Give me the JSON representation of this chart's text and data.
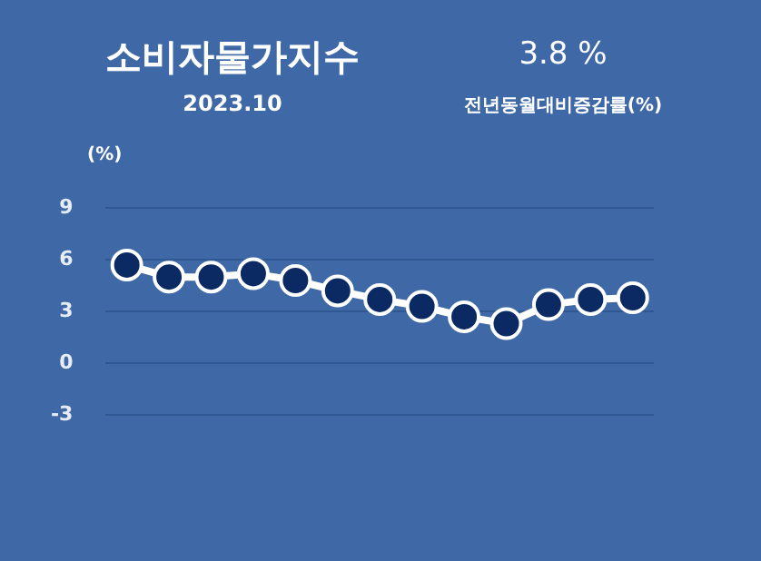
{
  "chart_data": {
    "type": "line",
    "title": "소비자물가지수",
    "subtitle": "2023.10",
    "ylabel": "(%)",
    "annotations": [
      "3.8 %",
      "전년동월대비증감률(%)"
    ],
    "categories": [
      null,
      null,
      null,
      null,
      null,
      null,
      null,
      null,
      null,
      null,
      null,
      null,
      null
    ],
    "series": [
      {
        "color": "#0b2a63",
        "values": [
          5.7,
          5.0,
          5.0,
          5.2,
          4.8,
          4.2,
          3.7,
          3.3,
          2.7,
          2.3,
          3.4,
          3.7,
          3.8
        ]
      }
    ],
    "ylim": [
      -3,
      9
    ],
    "yticks": [
      -3,
      0,
      3,
      6,
      9
    ],
    "grid": "y",
    "legend": false,
    "marker": "circle",
    "line_style": "solid"
  }
}
